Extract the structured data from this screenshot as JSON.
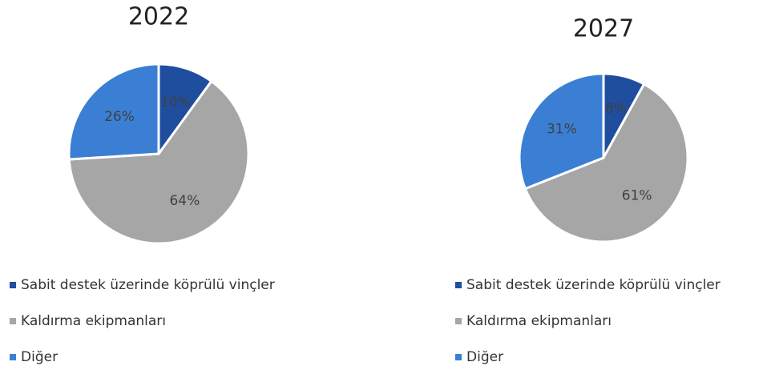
{
  "chart_data": [
    {
      "type": "pie",
      "title": "2022",
      "categories": [
        "Sabit destek üzerinde köprülü vinçler",
        "Kaldırma ekipmanları",
        "Diğer"
      ],
      "values": [
        10,
        64,
        26
      ],
      "value_labels": [
        "10%",
        "64%",
        "26%"
      ],
      "colors": [
        "#1f4e9f",
        "#a6a6a6",
        "#3b7fd4"
      ]
    },
    {
      "type": "pie",
      "title": "2027",
      "categories": [
        "Sabit destek üzerinde köprülü vinçler",
        "Kaldırma ekipmanları",
        "Diğer"
      ],
      "values": [
        8,
        61,
        31
      ],
      "value_labels": [
        "8%",
        "61%",
        "31%"
      ],
      "colors": [
        "#1f4e9f",
        "#a6a6a6",
        "#3b7fd4"
      ]
    }
  ]
}
